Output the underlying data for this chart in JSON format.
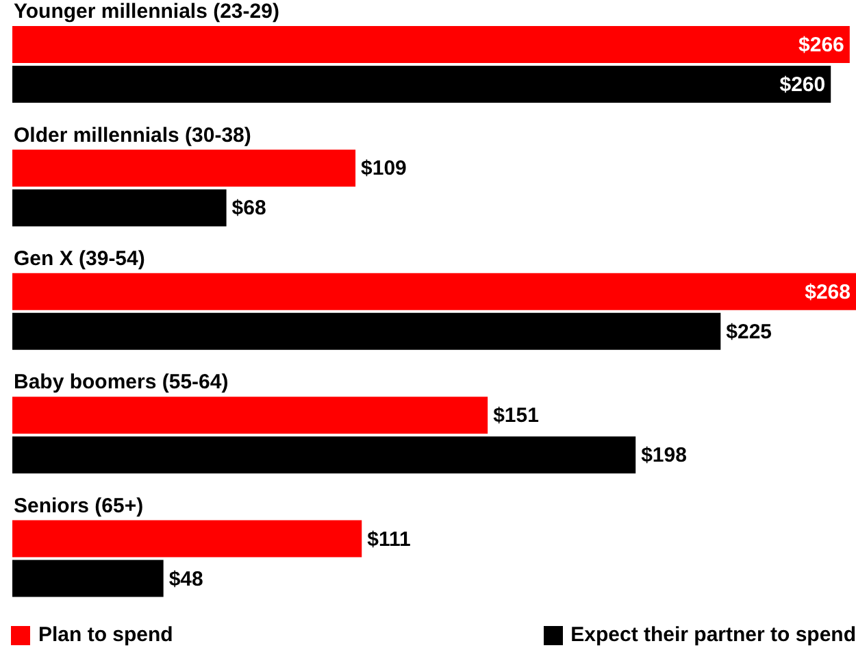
{
  "chart_data": {
    "type": "bar",
    "orientation": "horizontal",
    "categories": [
      "Younger millennials (23-29)",
      "Older millennials (30-38)",
      "Gen X (39-54)",
      "Baby boomers (55-64)",
      "Seniors (65+)"
    ],
    "series": [
      {
        "name": "Plan to spend",
        "color": "#ff0000",
        "values": [
          266,
          109,
          268,
          151,
          111
        ],
        "value_labels": [
          "$266",
          "$109",
          "$268",
          "$151",
          "$111"
        ]
      },
      {
        "name": "Expect their partner to spend",
        "color": "#000000",
        "values": [
          260,
          68,
          225,
          198,
          48
        ],
        "value_labels": [
          "$260",
          "$68",
          "$225",
          "$198",
          "$48"
        ]
      }
    ],
    "legend": "bottom",
    "grid": false
  }
}
